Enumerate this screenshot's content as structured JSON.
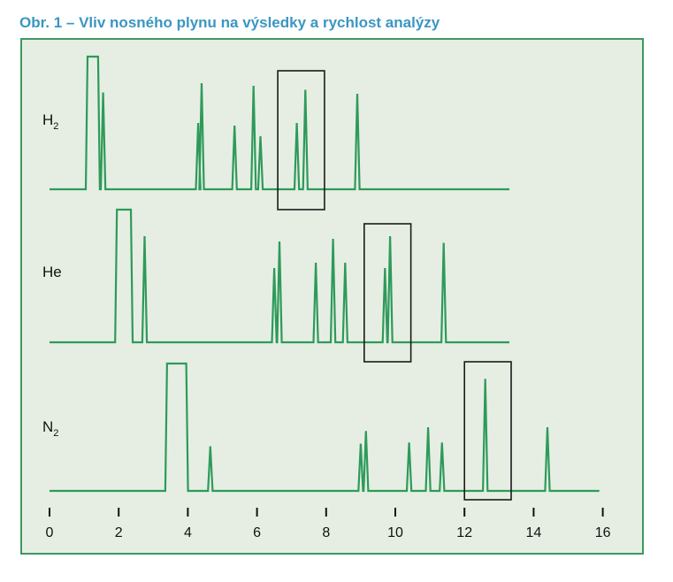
{
  "chart_data": {
    "type": "line",
    "title": "Obr. 1 – Vliv nosného plynu na výsledky a rychlost analýzy",
    "xlabel": "",
    "ylabel": "",
    "xlim": [
      0,
      16
    ],
    "x_ticks": [
      "0",
      "2",
      "4",
      "6",
      "8",
      "10",
      "12",
      "14",
      "16"
    ],
    "x_tick_values": [
      0,
      2,
      4,
      6,
      8,
      10,
      12,
      14,
      16
    ],
    "grid": false,
    "line_color": "#2e9a5a",
    "series": [
      {
        "name": "H2",
        "label_main": "H",
        "label_sub": "2",
        "end": 13.3,
        "solvent": {
          "start": 1.1,
          "end": 1.25,
          "height": 1.0
        },
        "peaks": [
          [
            1.55,
            0.73
          ],
          [
            4.3,
            0.5
          ],
          [
            4.4,
            0.8
          ],
          [
            5.35,
            0.48
          ],
          [
            5.9,
            0.78
          ],
          [
            6.1,
            0.4
          ],
          [
            7.15,
            0.5
          ],
          [
            7.4,
            0.75
          ],
          [
            8.9,
            0.72
          ]
        ],
        "highlight": [
          6.6,
          7.95
        ]
      },
      {
        "name": "He",
        "label_main": "He",
        "label_sub": "",
        "end": 13.3,
        "solvent": {
          "start": 1.95,
          "end": 2.2,
          "height": 1.0
        },
        "peaks": [
          [
            2.75,
            0.8
          ],
          [
            6.5,
            0.56
          ],
          [
            6.65,
            0.76
          ],
          [
            7.7,
            0.6
          ],
          [
            8.2,
            0.78
          ],
          [
            8.55,
            0.6
          ],
          [
            9.7,
            0.56
          ],
          [
            9.85,
            0.8
          ],
          [
            11.4,
            0.75
          ]
        ],
        "highlight": [
          9.1,
          10.45
        ]
      },
      {
        "name": "N2",
        "label_main": "N",
        "label_sub": "2",
        "end": 15.9,
        "solvent": {
          "start": 3.4,
          "end": 3.8,
          "height": 1.0
        },
        "peaks": [
          [
            4.65,
            0.35
          ],
          [
            9.0,
            0.37
          ],
          [
            9.15,
            0.47
          ],
          [
            10.4,
            0.38
          ],
          [
            10.95,
            0.5
          ],
          [
            11.35,
            0.38
          ],
          [
            12.6,
            0.88
          ],
          [
            14.4,
            0.5
          ]
        ],
        "highlight": [
          12.0,
          13.35
        ]
      }
    ]
  }
}
